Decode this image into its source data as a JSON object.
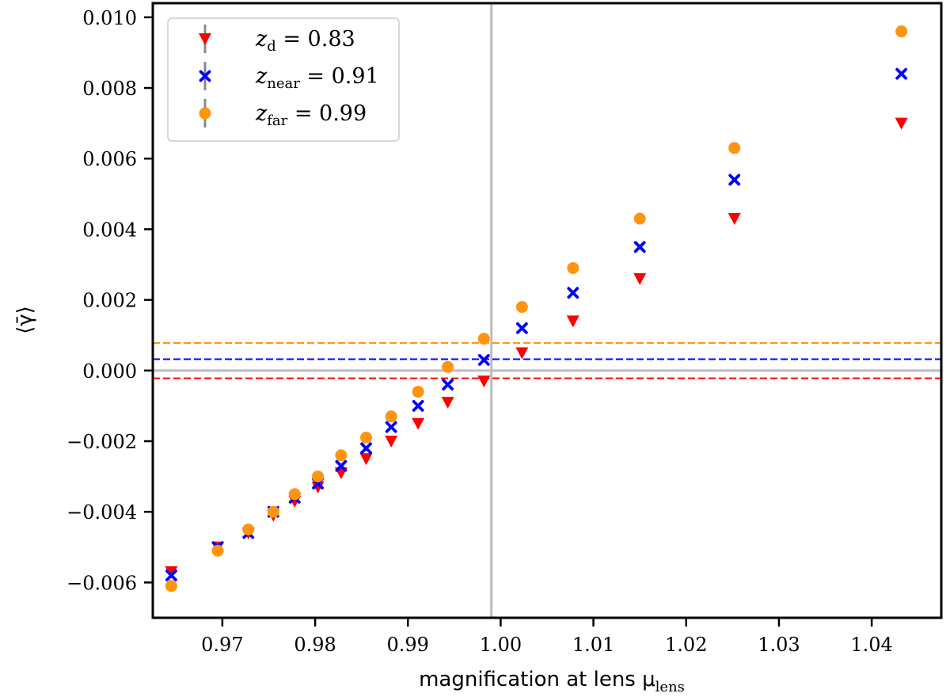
{
  "chart_data": {
    "type": "scatter",
    "xlabel": "magnification at lens μ",
    "xlabel_sub": "lens",
    "ylabel": "⟨γ̄⟩",
    "xlim": [
      0.9625,
      1.0475
    ],
    "ylim": [
      -0.007,
      0.0104
    ],
    "xticks": [
      0.97,
      0.98,
      0.99,
      1.0,
      1.01,
      1.02,
      1.03,
      1.04
    ],
    "xtick_labels": [
      "0.97",
      "0.98",
      "0.99",
      "1.00",
      "1.01",
      "1.02",
      "1.03",
      "1.04"
    ],
    "yticks": [
      -0.006,
      -0.004,
      -0.002,
      0.0,
      0.002,
      0.004,
      0.006,
      0.008,
      0.01
    ],
    "ytick_labels": [
      "−0.006",
      "−0.004",
      "−0.002",
      "0.000",
      "0.002",
      "0.004",
      "0.006",
      "0.008",
      "0.010"
    ],
    "reference_lines": {
      "vertical_x": 0.999,
      "horizontal_y": 0.0
    },
    "legend_position": "top-left",
    "x": [
      0.9645,
      0.9695,
      0.9728,
      0.9755,
      0.9778,
      0.9803,
      0.9828,
      0.9855,
      0.9882,
      0.9911,
      0.9943,
      0.9982,
      1.0023,
      1.0078,
      1.015,
      1.0252,
      1.0432
    ],
    "series": [
      {
        "name": "z_d = 0.83",
        "label_main": "z",
        "label_sub": "d",
        "label_value": " = 0.83",
        "marker": "triangle-down",
        "color": "#ff0000",
        "mean_line": -0.00022,
        "values": [
          -0.0057,
          -0.005,
          -0.0046,
          -0.0041,
          -0.0037,
          -0.0033,
          -0.0029,
          -0.0025,
          -0.002,
          -0.0015,
          -0.0009,
          -0.0003,
          0.0005,
          0.0014,
          0.0026,
          0.0043,
          0.007
        ]
      },
      {
        "name": "z_near = 0.91",
        "label_main": "z",
        "label_sub": "near",
        "label_value": " = 0.91",
        "marker": "x",
        "color": "#0000ff",
        "mean_line": 0.00032,
        "values": [
          -0.0058,
          -0.005,
          -0.0046,
          -0.004,
          -0.0036,
          -0.0032,
          -0.0027,
          -0.0022,
          -0.0016,
          -0.001,
          -0.0004,
          0.0003,
          0.0012,
          0.0022,
          0.0035,
          0.0054,
          0.0084
        ]
      },
      {
        "name": "z_far = 0.99",
        "label_main": "z",
        "label_sub": "far",
        "label_value": " = 0.99",
        "marker": "circle",
        "color": "#ff9410",
        "mean_line": 0.00078,
        "values": [
          -0.0061,
          -0.0051,
          -0.0045,
          -0.004,
          -0.0035,
          -0.003,
          -0.0024,
          -0.0019,
          -0.0013,
          -0.0006,
          0.0001,
          0.0009,
          0.0018,
          0.0029,
          0.0043,
          0.0063,
          0.0096
        ]
      }
    ]
  }
}
